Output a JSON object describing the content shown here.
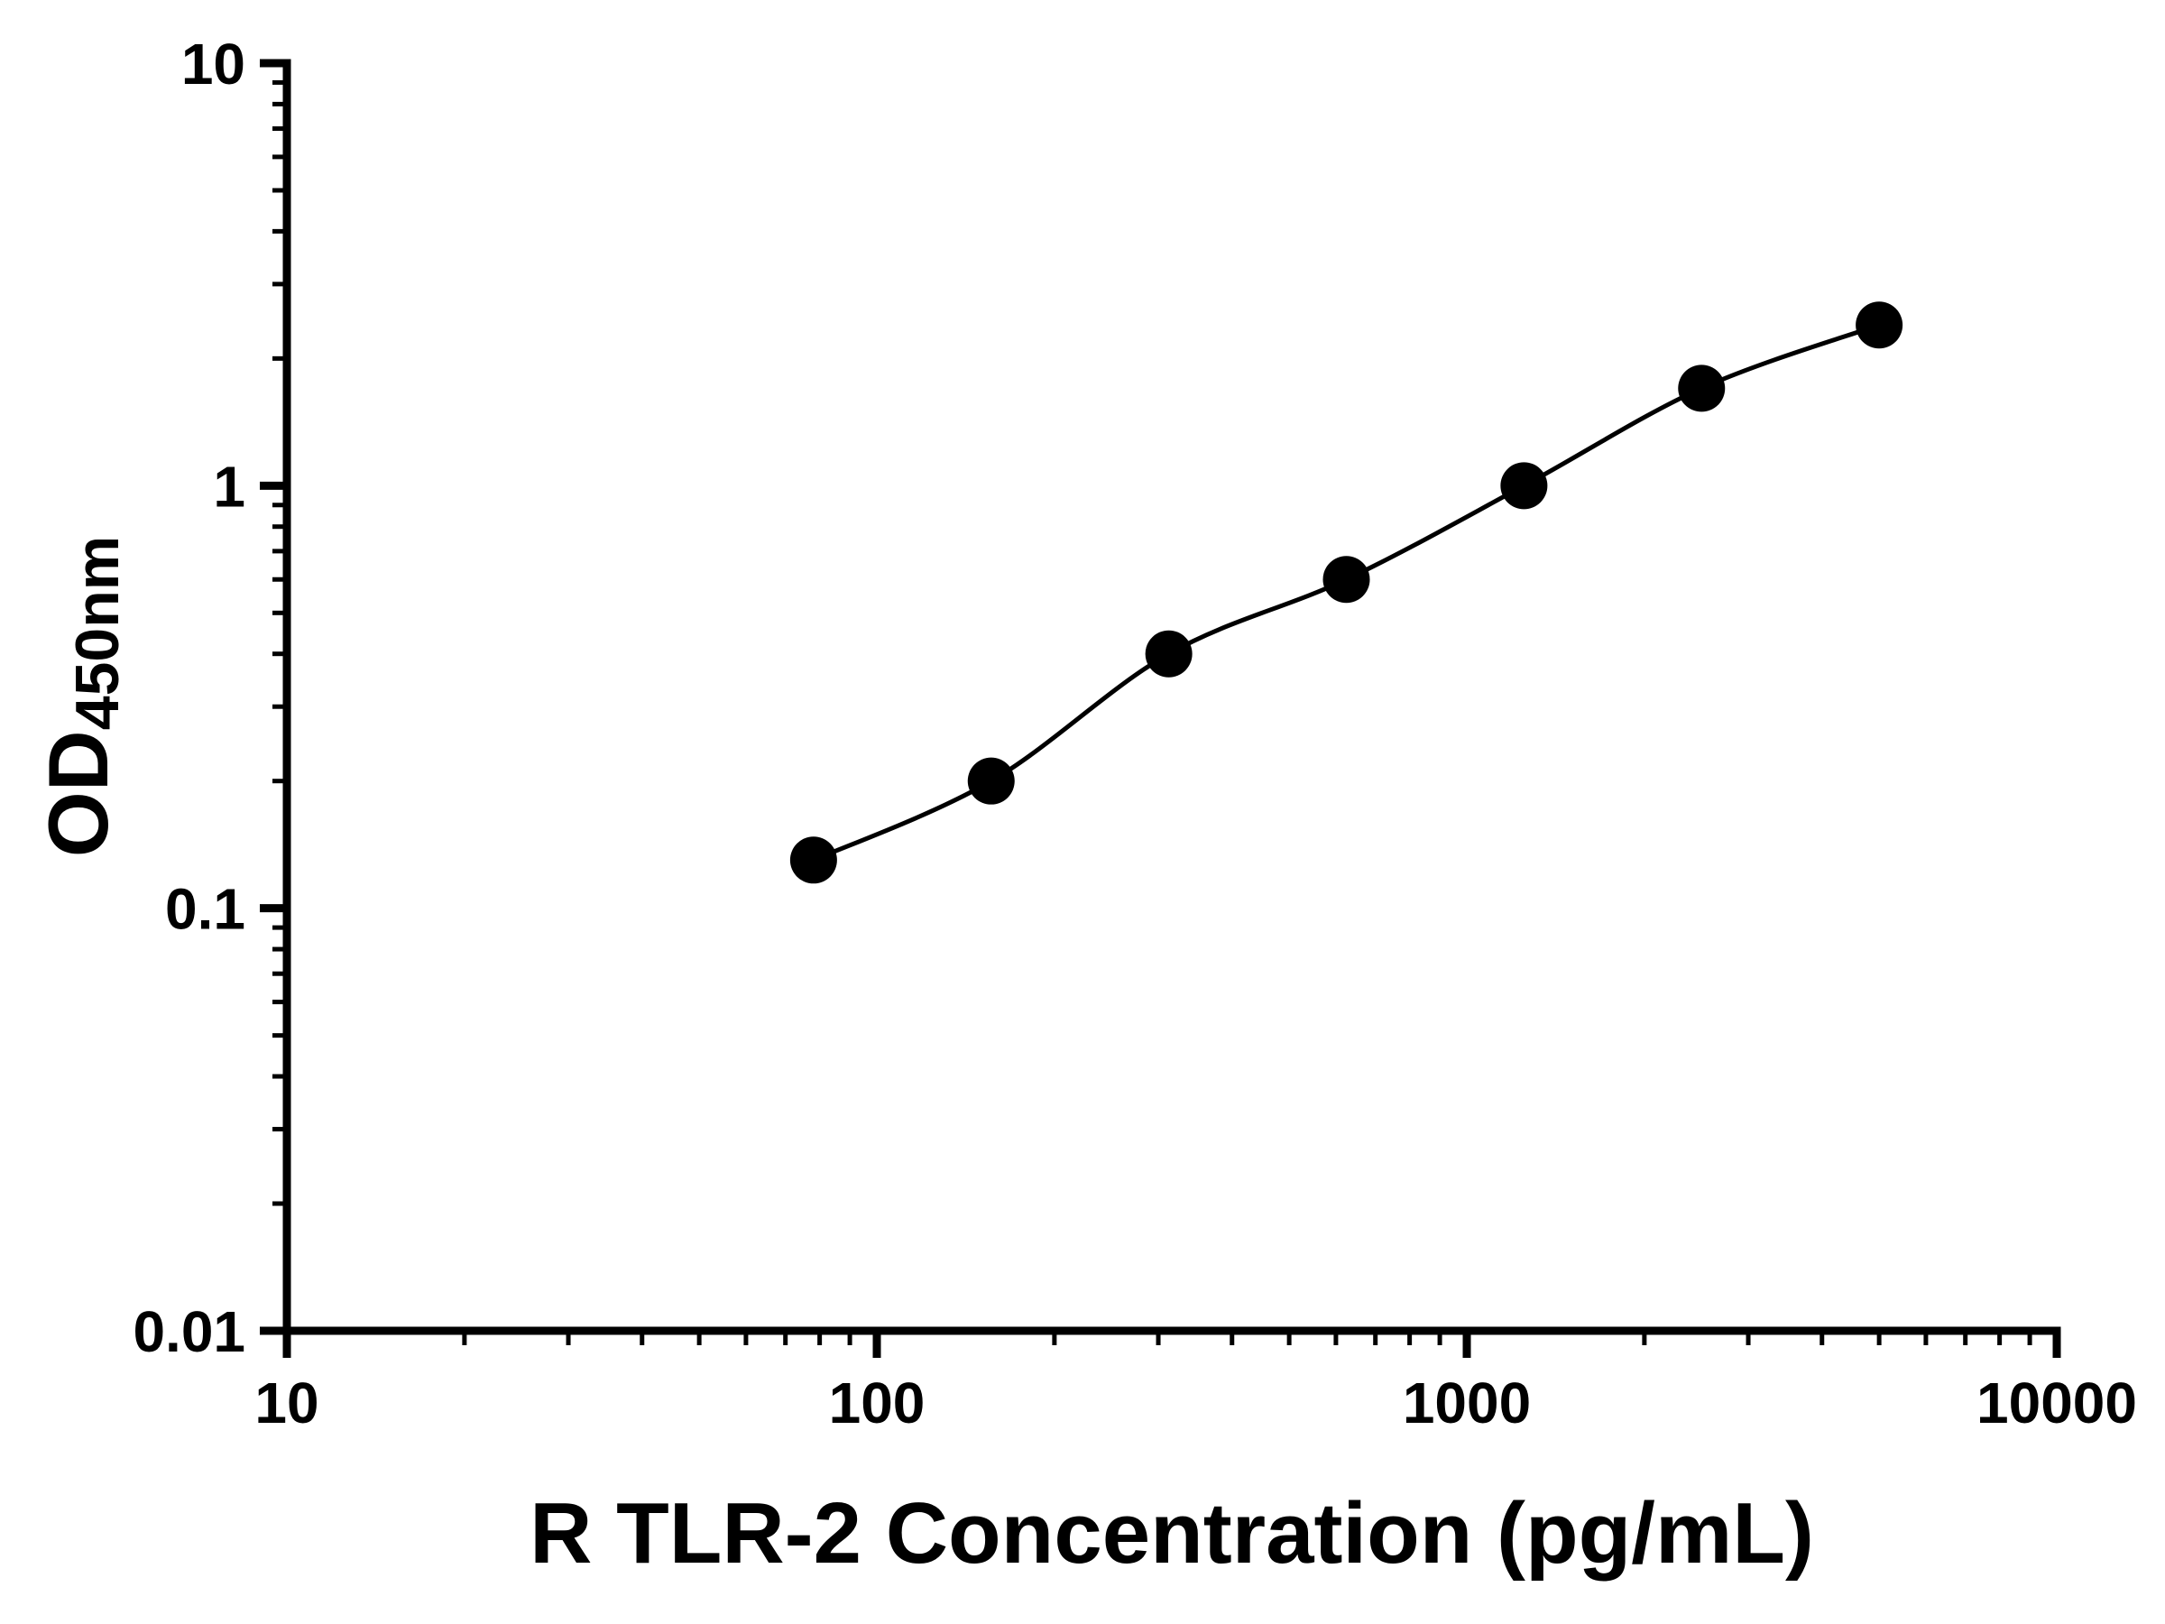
{
  "chart_data": {
    "type": "scatter",
    "title": "",
    "xlabel": "R TLR-2 Concentration (pg/mL)",
    "ylabel_main": "OD",
    "ylabel_sub": "450nm",
    "xscale": "log",
    "yscale": "log",
    "xlim": [
      10,
      10000
    ],
    "ylim": [
      0.01,
      10
    ],
    "grid": false,
    "legend": null,
    "marker": "circle",
    "marker_color": "#000000",
    "line_color": "#000000",
    "axis_color": "#000000",
    "background": "#ffffff",
    "x": [
      78.125,
      156.25,
      312.5,
      625,
      1250,
      2500,
      5000
    ],
    "y": [
      0.13,
      0.2,
      0.4,
      0.6,
      1.0,
      1.7,
      2.4
    ],
    "x_ticks": [
      {
        "value": 10,
        "label": "10"
      },
      {
        "value": 100,
        "label": "100"
      },
      {
        "value": 1000,
        "label": "1000"
      },
      {
        "value": 10000,
        "label": "10000"
      }
    ],
    "y_ticks": [
      {
        "value": 0.01,
        "label": "0.01"
      },
      {
        "value": 0.1,
        "label": "0.1"
      },
      {
        "value": 1,
        "label": "1"
      },
      {
        "value": 10,
        "label": "10"
      }
    ]
  }
}
